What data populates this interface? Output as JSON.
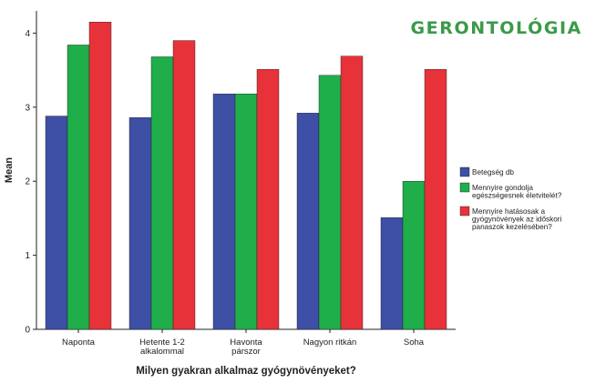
{
  "header": {
    "title": "GERONTOLÓGIA"
  },
  "colors": {
    "series": [
      "#3e4fa6",
      "#1fae4a",
      "#e8323a"
    ],
    "axis": "#222222",
    "header": "#3a9a48"
  },
  "chart_data": {
    "type": "bar",
    "title": "",
    "xlabel": "Milyen gyakran alkalmaz gyógynövényeket?",
    "ylabel": "Mean",
    "ylim": [
      0,
      4.3
    ],
    "yticks": [
      0,
      1,
      2,
      3,
      4
    ],
    "grid": false,
    "legend_position": "right",
    "categories": [
      [
        "Naponta"
      ],
      [
        "Hetente 1-2",
        "alkalommal"
      ],
      [
        "Havonta",
        "párszor"
      ],
      [
        "Nagyon ritkán"
      ],
      [
        "Soha"
      ]
    ],
    "series": [
      {
        "name": [
          "Betegség db"
        ],
        "color": "#3e4fa6",
        "values": [
          2.88,
          2.86,
          3.18,
          2.92,
          1.51
        ]
      },
      {
        "name": [
          "Mennyire gondolja",
          "egészségesnek életvitelét?"
        ],
        "color": "#1fae4a",
        "values": [
          3.84,
          3.68,
          3.18,
          3.43,
          2.0
        ]
      },
      {
        "name": [
          "Mennyire hatásosak a",
          "gyógynövények az időskori",
          "panaszok kezelésében?"
        ],
        "color": "#e8323a",
        "values": [
          4.15,
          3.9,
          3.51,
          3.69,
          3.51
        ]
      }
    ]
  }
}
